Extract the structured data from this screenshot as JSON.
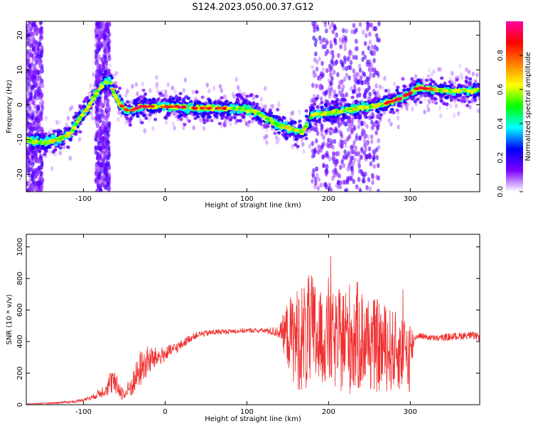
{
  "title": "S124.2023.050.00.37.G12",
  "chart_data": [
    {
      "type": "heatmap",
      "xlabel": "Height of straight line (km)",
      "ylabel": "Frequency (Hz)",
      "xlim": [
        -170,
        385
      ],
      "ylim": [
        -25,
        24
      ],
      "xticks": [
        -100,
        0,
        100,
        200,
        300
      ],
      "yticks": [
        -20,
        -10,
        0,
        10,
        20
      ],
      "colorbar": {
        "label": "Normalized spectral amplitude",
        "ticks": [
          0.0,
          0.2,
          0.4,
          0.6,
          0.8
        ],
        "range": [
          0,
          1
        ],
        "colormap": [
          "#ffffff",
          "#7b00ff",
          "#0000ff",
          "#00ffff",
          "#00ff00",
          "#ffff00",
          "#ff8000",
          "#ff0000",
          "#ff00a0"
        ]
      },
      "ridge": {
        "x": [
          -170,
          -150,
          -130,
          -115,
          -105,
          -95,
          -85,
          -75,
          -68,
          -62,
          -55,
          -45,
          -30,
          -10,
          10,
          40,
          70,
          95,
          110,
          125,
          140,
          155,
          168,
          180,
          265,
          290,
          310,
          340,
          385
        ],
        "y": [
          -10,
          -11,
          -10,
          -8,
          -4,
          -1,
          3,
          6,
          7,
          3,
          0,
          -2,
          -0.5,
          -0.5,
          -0.5,
          -1,
          -1,
          -1,
          -2,
          -4,
          -6,
          -7,
          -8,
          -3,
          0,
          2,
          5,
          4,
          4
        ]
      },
      "noise_bands_x": [
        [
          -170,
          -150
        ],
        [
          -85,
          -68
        ],
        [
          180,
          262
        ]
      ]
    },
    {
      "type": "line",
      "xlabel": "Height of straight line (km)",
      "ylabel": "SNR (10 * v/v)",
      "xlim": [
        -170,
        385
      ],
      "ylim": [
        0,
        1080
      ],
      "xticks": [
        -100,
        0,
        100,
        200,
        300
      ],
      "yticks": [
        0,
        200,
        400,
        600,
        800,
        1000
      ],
      "color": "#f03030",
      "series": [
        {
          "x": [
            -170,
            -140,
            -110,
            -90,
            -75,
            -65,
            -58,
            -50,
            -40,
            -30,
            -20,
            -10,
            0,
            10,
            20,
            30,
            40,
            60,
            80,
            100,
            120,
            140,
            150,
            160,
            170,
            180,
            190,
            200,
            210,
            220,
            230,
            240,
            250,
            260,
            270,
            280,
            290,
            300,
            305,
            310,
            330,
            350,
            370,
            385
          ],
          "y": [
            5,
            10,
            20,
            45,
            90,
            150,
            110,
            60,
            130,
            230,
            280,
            300,
            320,
            350,
            380,
            420,
            445,
            460,
            465,
            470,
            470,
            460,
            450,
            420,
            430,
            440,
            420,
            410,
            400,
            420,
            430,
            420,
            390,
            370,
            360,
            340,
            330,
            320,
            420,
            440,
            420,
            430,
            440,
            430
          ],
          "spread": [
            3,
            5,
            8,
            15,
            40,
            90,
            60,
            40,
            80,
            120,
            100,
            60,
            50,
            40,
            30,
            25,
            20,
            20,
            15,
            15,
            15,
            40,
            220,
            320,
            360,
            400,
            300,
            280,
            320,
            350,
            380,
            340,
            300,
            300,
            280,
            260,
            240,
            250,
            20,
            20,
            20,
            25,
            25,
            25
          ]
        }
      ]
    }
  ]
}
